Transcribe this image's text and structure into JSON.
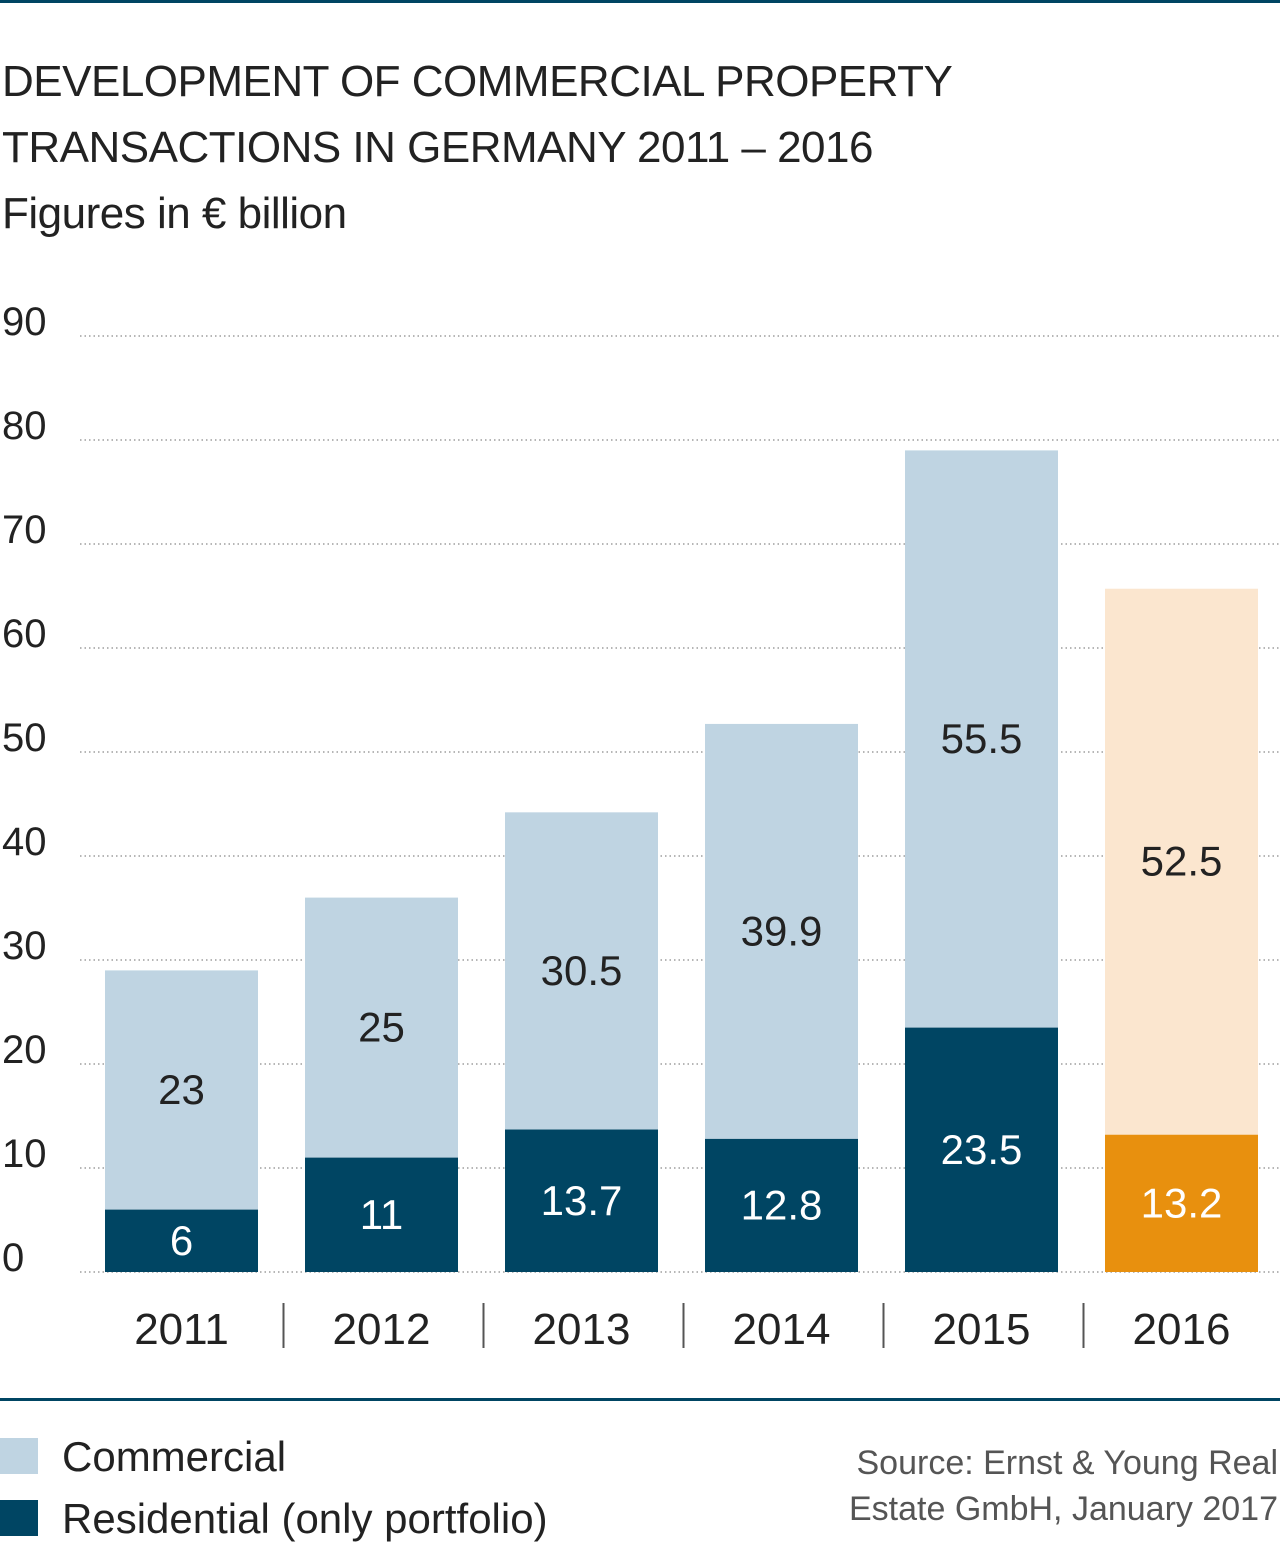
{
  "title": {
    "line1": "DEVELOPMENT OF COMMERCIAL PROPERTY",
    "line2": "TRANSACTIONS IN GERMANY 2011 – 2016",
    "subtitle": "Figures in € billion"
  },
  "legend": {
    "commercial": "Commercial",
    "residential": "Residential (only portfolio)"
  },
  "source": {
    "line1": "Source: Ernst & Young Real",
    "line2": "Estate GmbH, January 2017"
  },
  "colors": {
    "residential": "#004563",
    "commercial": "#bfd4e2",
    "residential_highlight": "#e8900e",
    "commercial_highlight": "#fbe6cf",
    "rule": "#004563"
  },
  "chart_data": {
    "type": "bar",
    "stacked": true,
    "title": "DEVELOPMENT OF COMMERCIAL PROPERTY TRANSACTIONS IN GERMANY 2011 – 2016",
    "subtitle": "Figures in € billion",
    "categories": [
      "2011",
      "2012",
      "2013",
      "2014",
      "2015",
      "2016"
    ],
    "series": [
      {
        "name": "Residential (only portfolio)",
        "values": [
          6,
          11,
          13.7,
          12.8,
          23.5,
          13.2
        ],
        "labels": [
          "6",
          "11",
          "13.7",
          "12.8",
          "23.5",
          "13.2"
        ]
      },
      {
        "name": "Commercial",
        "values": [
          23,
          25,
          30.5,
          39.9,
          55.5,
          52.5
        ],
        "labels": [
          "23",
          "25",
          "30.5",
          "39.9",
          "55.5",
          "52.5"
        ]
      }
    ],
    "highlight_category": "2016",
    "ylim": [
      0,
      90
    ],
    "yticks": [
      0,
      10,
      20,
      30,
      40,
      50,
      60,
      70,
      80,
      90
    ],
    "grid": "horizontal dotted",
    "legend_position": "bottom-left"
  }
}
